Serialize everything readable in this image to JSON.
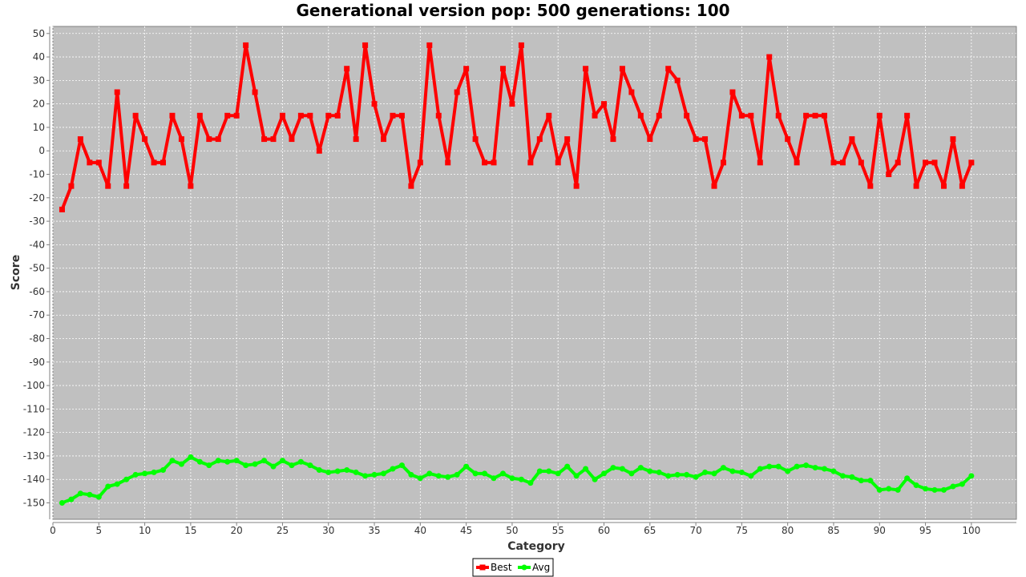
{
  "chart_data": {
    "type": "line",
    "title": "Generational version pop: 500 generations: 100",
    "xlabel": "Category",
    "ylabel": "Score",
    "xlim": [
      0,
      104.9
    ],
    "ylim": [
      -157,
      53
    ],
    "x_ticks": [
      0,
      5,
      10,
      15,
      20,
      25,
      30,
      35,
      40,
      45,
      50,
      55,
      60,
      65,
      70,
      75,
      80,
      85,
      90,
      95,
      100
    ],
    "y_ticks": [
      50,
      40,
      30,
      20,
      10,
      0,
      -10,
      -20,
      -30,
      -40,
      -50,
      -60,
      -70,
      -80,
      -90,
      -100,
      -110,
      -120,
      -130,
      -140,
      -150
    ],
    "grid": true,
    "legend_position": "bottom-center",
    "x": [
      1,
      2,
      3,
      4,
      5,
      6,
      7,
      8,
      9,
      10,
      11,
      12,
      13,
      14,
      15,
      16,
      17,
      18,
      19,
      20,
      21,
      22,
      23,
      24,
      25,
      26,
      27,
      28,
      29,
      30,
      31,
      32,
      33,
      34,
      35,
      36,
      37,
      38,
      39,
      40,
      41,
      42,
      43,
      44,
      45,
      46,
      47,
      48,
      49,
      50,
      51,
      52,
      53,
      54,
      55,
      56,
      57,
      58,
      59,
      60,
      61,
      62,
      63,
      64,
      65,
      66,
      67,
      68,
      69,
      70,
      71,
      72,
      73,
      74,
      75,
      76,
      77,
      78,
      79,
      80,
      81,
      82,
      83,
      84,
      85,
      86,
      87,
      88,
      89,
      90,
      91,
      92,
      93,
      94,
      95,
      96,
      97,
      98,
      99,
      100
    ],
    "series": [
      {
        "name": "Best",
        "color": "#ff0000",
        "marker": "square",
        "values": [
          -25,
          -15,
          5,
          -5,
          -5,
          -15,
          25,
          -15,
          15,
          5,
          -5,
          -5,
          15,
          5,
          -15,
          15,
          5,
          5,
          15,
          15,
          45,
          25,
          5,
          5,
          15,
          5,
          15,
          15,
          0,
          15,
          15,
          35,
          5,
          45,
          20,
          5,
          15,
          15,
          -15,
          -5,
          45,
          15,
          -5,
          25,
          35,
          5,
          -5,
          -5,
          35,
          20,
          45,
          -5,
          5,
          15,
          -5,
          5,
          -15,
          35,
          15,
          20,
          5,
          35,
          25,
          15,
          5,
          15,
          35,
          30,
          15,
          5,
          5,
          -15,
          -5,
          25,
          15,
          15,
          -5,
          40,
          15,
          5,
          -5,
          15,
          15,
          15,
          -5,
          -5,
          5,
          -5,
          -15,
          15,
          -10,
          -5,
          15,
          -15,
          -5,
          -5,
          -15,
          5,
          -15,
          -5
        ]
      },
      {
        "name": "Avg",
        "color": "#00ff00",
        "marker": "circle",
        "values": [
          -150,
          -148.5,
          -146,
          -146.5,
          -147.5,
          -143,
          -142,
          -140,
          -138,
          -137.5,
          -137,
          -136,
          -132,
          -133.5,
          -130.5,
          -132.5,
          -134,
          -132,
          -132.5,
          -132,
          -134,
          -133.5,
          -132,
          -134.5,
          -132,
          -134,
          -132.5,
          -134,
          -136,
          -137,
          -136.5,
          -136,
          -137,
          -138.5,
          -138,
          -137.5,
          -135.5,
          -134,
          -138,
          -139.5,
          -137.5,
          -138.5,
          -139,
          -138,
          -134.5,
          -137.5,
          -137.5,
          -139.5,
          -137.5,
          -139.5,
          -140,
          -141.5,
          -136.5,
          -136.5,
          -137.5,
          -134.5,
          -138.5,
          -135.5,
          -140,
          -137.5,
          -135,
          -135.5,
          -137.5,
          -135,
          -136.5,
          -137,
          -138.5,
          -138,
          -138,
          -139,
          -137,
          -137.5,
          -135,
          -136.5,
          -137,
          -138.5,
          -135.5,
          -134.5,
          -134.5,
          -136.5,
          -134.5,
          -134,
          -135,
          -135.5,
          -136.5,
          -138.5,
          -139,
          -140.5,
          -140.5,
          -144.5,
          -144,
          -144.5,
          -139.5,
          -142.5,
          -144,
          -144.5,
          -144.5,
          -143,
          -142,
          -138.5
        ]
      }
    ]
  }
}
